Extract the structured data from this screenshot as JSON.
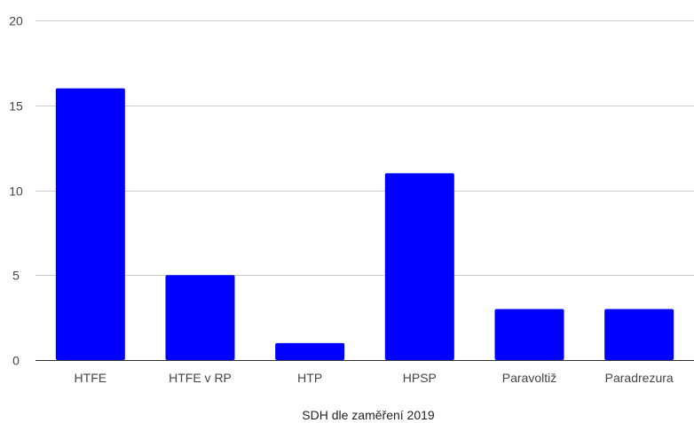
{
  "chart_data": {
    "type": "bar",
    "title": "",
    "xlabel": "SDH dle zaměření 2019",
    "ylabel": "",
    "categories": [
      "HTFE",
      "HTFE v RP",
      "HTP",
      "HPSP",
      "Paravoltiž",
      "Paradrezura"
    ],
    "values": [
      16,
      5,
      1,
      11,
      3,
      3
    ],
    "ylim": [
      0,
      20
    ],
    "yticks": [
      0,
      5,
      10,
      15,
      20
    ],
    "grid": true,
    "legend": "none",
    "bar_color": "#0000ff",
    "grid_color": "#cccccc",
    "axis_color": "#333333"
  }
}
